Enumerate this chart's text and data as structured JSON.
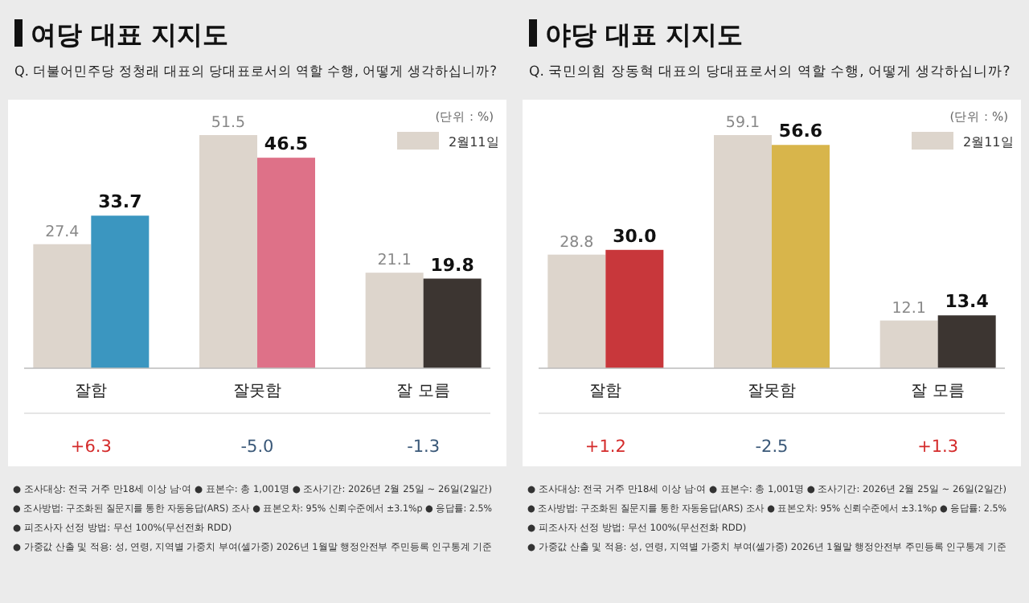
{
  "chart_data": [
    {
      "type": "bar",
      "title": "여당 대표 지지도",
      "subtitle": "Q. 더불어민주당 정청래 대표의 당대표로서의 역할 수행, 어떻게 생각하십니까?",
      "categories": [
        "잘함",
        "잘못함",
        "잘 모름"
      ],
      "series": [
        {
          "name": "2월11일",
          "color": "#ddd5cc",
          "values": [
            27.4,
            51.5,
            21.1
          ]
        },
        {
          "colors": [
            "#3b96c0",
            "#de7188",
            "#3c3531"
          ],
          "values": [
            33.7,
            46.5,
            19.8
          ]
        }
      ],
      "data_labels": true,
      "legend": "top right",
      "annotations": [
        "(단위 : %)",
        "+6.3",
        "-5.0",
        "-1.3",
        "● 조사대상: 전국 거주 만18세 이상 남·여 ● 표본수: 총 1,001명 ● 조사기간: 2026년 2월 25일 ~ 26일(2일간)",
        "● 조사방법: 구조화된 질문지를 통한 자동응답(ARS) 조사 ● 표본오차: 95% 신뢰수준에서 ±3.1%p ● 응답률: 2.5%",
        "● 피조사자 선정 방법: 무선 100%(무선전화 RDD)",
        "● 가중값 산출 및 적용: 성, 연령, 지역별 가중치 부여(셀가중) 2026년 1월말 행정안전부 주민등록 인구통계 기준"
      ]
    },
    {
      "type": "bar",
      "title": "야당 대표 지지도",
      "subtitle": "Q. 국민의힘 장동혁 대표의 당대표로서의 역할 수행, 어떻게 생각하십니까?",
      "categories": [
        "잘함",
        "잘못함",
        "잘 모름"
      ],
      "series": [
        {
          "name": "2월11일",
          "color": "#ddd5cc",
          "values": [
            28.8,
            59.1,
            12.1
          ]
        },
        {
          "colors": [
            "#c8373b",
            "#d8b54b",
            "#3c3531"
          ],
          "values": [
            30.0,
            56.6,
            13.4
          ],
          "value_labels": [
            "30.0",
            "56.6",
            "13.4"
          ]
        }
      ],
      "data_labels": true,
      "legend": "top right",
      "annotations": [
        "(단위 : %)",
        "+1.2",
        "-2.5",
        "+1.3",
        "● 조사대상: 전국 거주 만18세 이상 남·여 ● 표본수: 총 1,001명 ● 조사기간: 2026년 2월 25일 ~ 26일(2일간)",
        "● 조사방법: 구조화된 질문지를 통한 자동응답(ARS) 조사 ● 표본오차: 95% 신뢰수준에서 ±3.1%p ● 응답률: 2.5%",
        "● 피조사자 선정 방법: 무선 100%(무선전화 RDD)",
        "● 가중값 산출 및 적용: 성, 연령, 지역별 가중치 부여(셀가중) 2026년 1월말 행정안전부 주민등록 인구통계 기준"
      ]
    }
  ]
}
